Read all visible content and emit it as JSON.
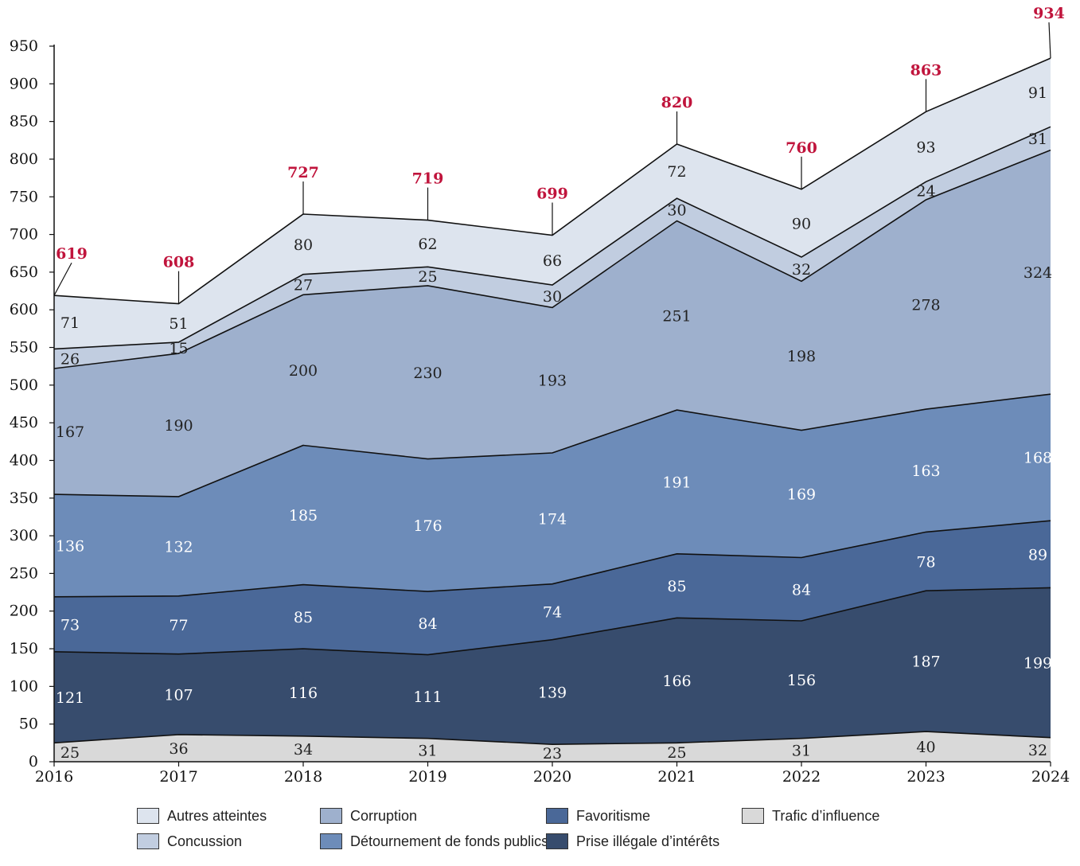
{
  "chart_data": {
    "type": "area",
    "stacked": true,
    "title": "",
    "xlabel": "",
    "ylabel": "",
    "x": [
      "2016",
      "2017",
      "2018",
      "2019",
      "2020",
      "2021",
      "2022",
      "2023",
      "2024"
    ],
    "ylim": [
      0,
      950
    ],
    "yticks": [
      0,
      50,
      100,
      150,
      200,
      250,
      300,
      350,
      400,
      450,
      500,
      550,
      600,
      650,
      700,
      750,
      800,
      850,
      900,
      950
    ],
    "grid": false,
    "legend_position": "bottom",
    "series": [
      {
        "name": "Trafic d’influence",
        "color": "#d9d9d9",
        "label_color": "#222222",
        "values": [
          25,
          36,
          34,
          31,
          23,
          25,
          31,
          40,
          32
        ]
      },
      {
        "name": "Prise illégale d’intérêts",
        "color": "#374c6d",
        "label_color": "#ffffff",
        "values": [
          121,
          107,
          116,
          111,
          139,
          166,
          156,
          187,
          199
        ]
      },
      {
        "name": "Favoritisme",
        "color": "#4a6898",
        "label_color": "#ffffff",
        "values": [
          73,
          77,
          85,
          84,
          74,
          85,
          84,
          78,
          89
        ]
      },
      {
        "name": "Détournement de fonds publics",
        "color": "#6d8cb9",
        "label_color": "#ffffff",
        "values": [
          136,
          132,
          185,
          176,
          174,
          191,
          169,
          163,
          168
        ]
      },
      {
        "name": "Corruption",
        "color": "#9eb0cd",
        "label_color": "#222222",
        "values": [
          167,
          190,
          200,
          230,
          193,
          251,
          198,
          278,
          324
        ]
      },
      {
        "name": "Concussion",
        "color": "#c1cde0",
        "label_color": "#222222",
        "values": [
          26,
          15,
          27,
          25,
          30,
          30,
          32,
          24,
          31
        ]
      },
      {
        "name": "Autres atteintes",
        "color": "#dde4ee",
        "label_color": "#222222",
        "values": [
          71,
          51,
          80,
          62,
          66,
          72,
          90,
          93,
          91
        ]
      }
    ],
    "totals": [
      619,
      608,
      727,
      719,
      699,
      820,
      760,
      863,
      934
    ],
    "total_color": "#c0143c"
  },
  "legend": {
    "order": [
      "Autres atteintes",
      "Corruption",
      "Favoritisme",
      "Trafic d’influence",
      "Concussion",
      "Détournement de fonds publics",
      "Prise illégale d’intérêts"
    ]
  }
}
